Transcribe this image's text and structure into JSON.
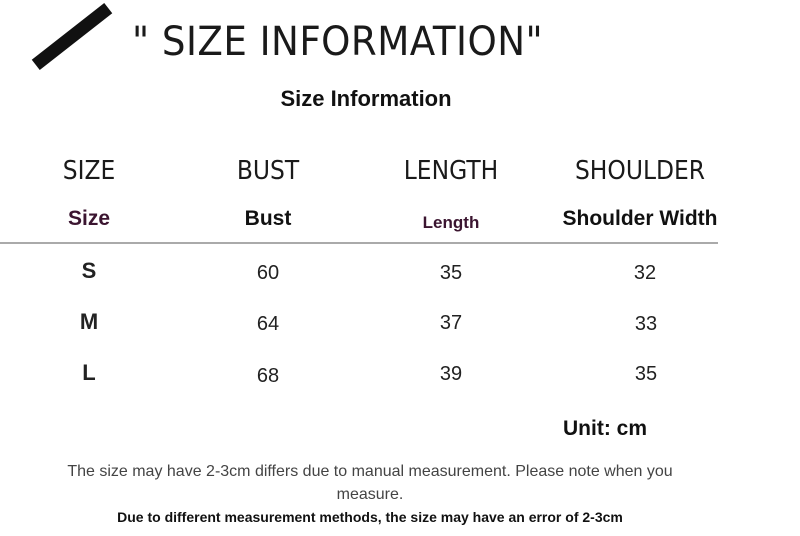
{
  "banner_title": "\" SIZE INFORMATION\"",
  "subtitle": "Size Information",
  "table": {
    "headers": [
      "SIZE",
      "BUST",
      "LENGTH",
      "SHOULDER"
    ],
    "subheaders": [
      "Size",
      "Bust",
      "Length",
      "Shoulder Width"
    ],
    "rows": [
      [
        "S",
        "60",
        "35",
        "32"
      ],
      [
        "M",
        "64",
        "37",
        "33"
      ],
      [
        "L",
        "68",
        "39",
        "35"
      ]
    ]
  },
  "unit": "Unit: cm",
  "notes": {
    "line1": "The size may have 2-3cm differs due to manual measurement. Please note when you",
    "line2": "measure.",
    "line3": "Due to different measurement methods, the size may have an error of 2-3cm"
  },
  "colors": {
    "subheader_accent": "#3b1530"
  }
}
